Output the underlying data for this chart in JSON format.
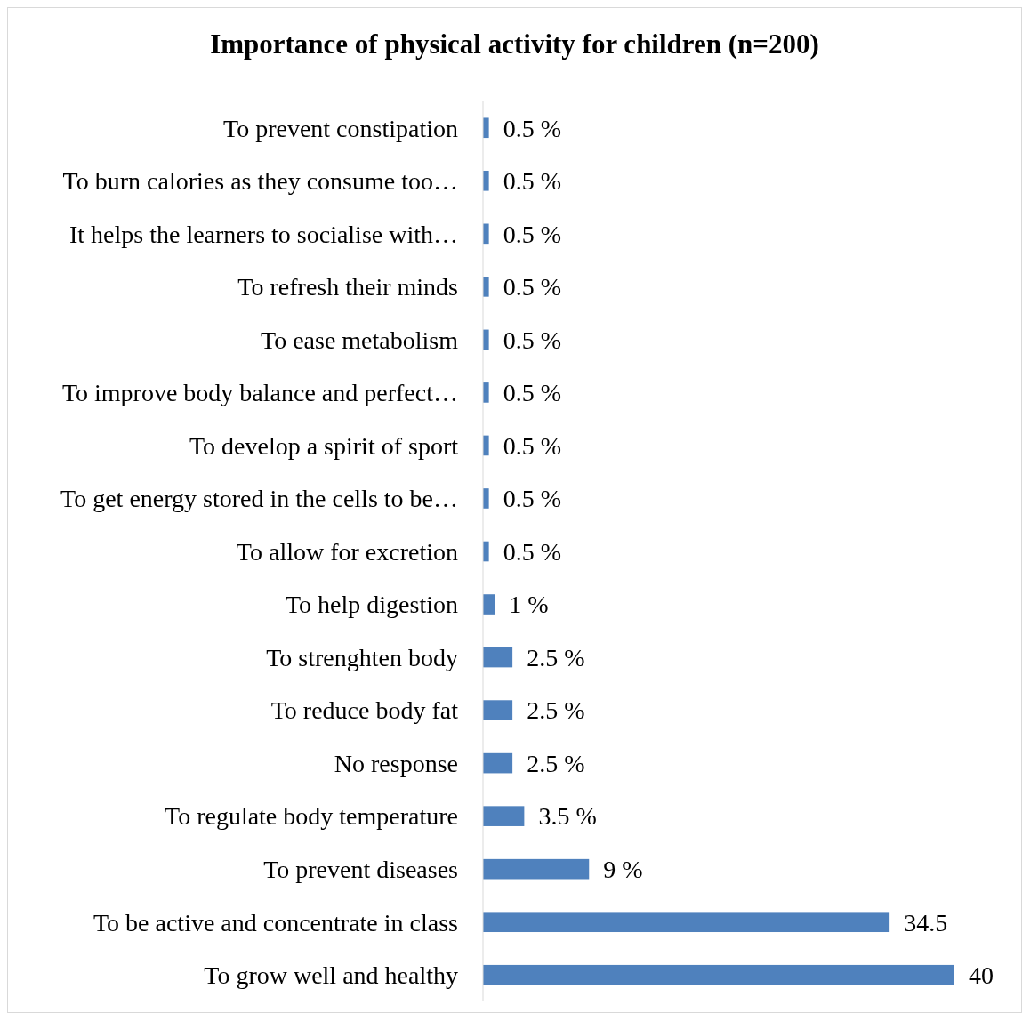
{
  "chart_data": {
    "type": "bar",
    "orientation": "horizontal",
    "title": "Importance of physical activity for children (n=200)",
    "categories": [
      "To prevent constipation",
      "To burn calories as they consume too…",
      "It helps the learners to socialise with…",
      "To refresh their minds",
      "To ease metabolism",
      "To improve body balance and perfect…",
      "To develop a spirit of sport",
      "To get energy stored in the cells to be…",
      "To allow for excretion",
      "To help digestion",
      "To strenghten body",
      "To reduce body fat",
      "No response",
      "To regulate body temperature",
      "To prevent diseases",
      "To be active and concentrate in class",
      "To grow well and healthy"
    ],
    "values": [
      0.5,
      0.5,
      0.5,
      0.5,
      0.5,
      0.5,
      0.5,
      0.5,
      0.5,
      1,
      2.5,
      2.5,
      2.5,
      3.5,
      9,
      34.5,
      40
    ],
    "value_labels": [
      "0.5 %",
      "0.5 %",
      "0.5 %",
      "0.5 %",
      "0.5 %",
      "0.5 %",
      "0.5 %",
      "0.5 %",
      "0.5 %",
      "1 %",
      "2.5 %",
      "2.5 %",
      "2.5 %",
      "3.5 %",
      "9 %",
      "34.5",
      "40"
    ],
    "color": "#4f81bd"
  }
}
